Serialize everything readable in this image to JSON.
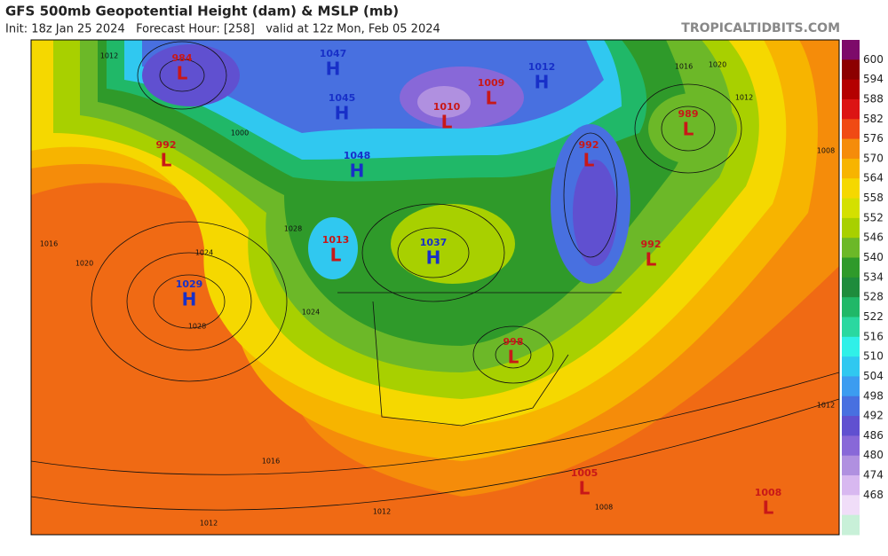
{
  "header": {
    "title": "GFS 500mb Geopotential Height (dam) & MSLP (mb)",
    "subtitle": "Init: 18z Jan 25 2024   Forecast Hour: [258]   valid at 12z Mon, Feb 05 2024",
    "credit": "TROPICALTIDBITS.COM"
  },
  "colorbar": {
    "colors": [
      "#7d0a6a",
      "#8c0000",
      "#b40000",
      "#dc1414",
      "#f04a14",
      "#f58c0a",
      "#f7b400",
      "#f5d800",
      "#d4e000",
      "#a8d000",
      "#6cb828",
      "#2f9a2a",
      "#1e8c3c",
      "#20b868",
      "#2ad8a0",
      "#30f0e8",
      "#30c8f0",
      "#3c9cf0",
      "#4870e0",
      "#6050d0",
      "#8868d8",
      "#b090e0",
      "#d8b8f0",
      "#f0ddf8",
      "#c8f0d8"
    ],
    "ticks": [
      600,
      594,
      588,
      582,
      576,
      570,
      564,
      558,
      552,
      546,
      540,
      534,
      528,
      522,
      516,
      510,
      504,
      498,
      492,
      486,
      480,
      474,
      468
    ]
  },
  "centers": [
    {
      "letter": "L",
      "value": 984
    },
    {
      "letter": "L",
      "value": 992
    },
    {
      "letter": "H",
      "value": 1047
    },
    {
      "letter": "H",
      "value": 1045
    },
    {
      "letter": "H",
      "value": 1048
    },
    {
      "letter": "L",
      "value": 1013
    },
    {
      "letter": "H",
      "value": 1037
    },
    {
      "letter": "H",
      "value": 1029
    },
    {
      "letter": "L",
      "value": 1009
    },
    {
      "letter": "L",
      "value": 1010
    },
    {
      "letter": "H",
      "value": 1012
    },
    {
      "letter": "L",
      "value": 992
    },
    {
      "letter": "L",
      "value": 989
    },
    {
      "letter": "L",
      "value": 992
    },
    {
      "letter": "L",
      "value": 998
    },
    {
      "letter": "L",
      "value": 1005
    },
    {
      "letter": "L",
      "value": 1008
    }
  ],
  "center_colors": {
    "H": "#1830c8",
    "L": "#c81818"
  },
  "isobar_labels": [
    1012,
    1016,
    1020,
    1024,
    1028,
    1016,
    1012,
    1012,
    1012,
    1008,
    1016,
    1020,
    1012,
    1000,
    1008,
    1028,
    1024
  ]
}
